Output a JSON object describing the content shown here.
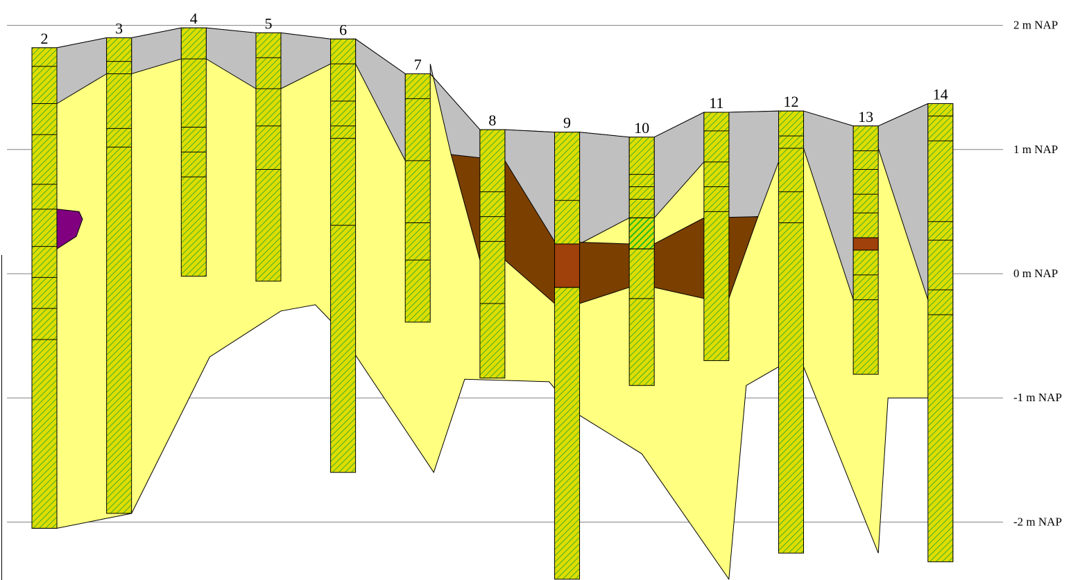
{
  "unit": "m NAP",
  "levels": [
    {
      "value": 2,
      "label": "2  m NAP"
    },
    {
      "value": 1,
      "label": "1  m NAP"
    },
    {
      "value": 0,
      "label": "0  m NAP"
    },
    {
      "value": -1,
      "label": "-1  m NAP"
    },
    {
      "value": -2,
      "label": "-2  m NAP"
    }
  ],
  "colors": {
    "sand": "#FFFF80",
    "fill": "#C0C0C0",
    "peat": "#7B3F00",
    "peat_bore": "#A0400A",
    "clay": "#800080",
    "column": "#DDDD00",
    "hatch": "#33AA33",
    "line": "#000000",
    "grid": "#808080"
  },
  "borings": [
    {
      "label": "2",
      "top": 1.82,
      "bottom": -2.05,
      "boundaries": [
        1.67,
        1.37,
        1.12,
        0.72,
        0.52,
        0.22,
        -0.03,
        -0.28,
        -0.53
      ]
    },
    {
      "label": "3",
      "top": 1.9,
      "bottom": -1.93,
      "boundaries": [
        1.71,
        1.61,
        1.17,
        1.02
      ]
    },
    {
      "label": "4",
      "top": 1.98,
      "bottom": -0.02,
      "boundaries": [
        1.73,
        1.18,
        0.98,
        0.78
      ]
    },
    {
      "label": "5",
      "top": 1.94,
      "bottom": -0.06,
      "boundaries": [
        1.74,
        1.49,
        1.19,
        0.84
      ]
    },
    {
      "label": "6",
      "top": 1.89,
      "bottom": -1.6,
      "boundaries": [
        1.69,
        1.39,
        1.19,
        1.09,
        0.39
      ]
    },
    {
      "label": "7",
      "top": 1.61,
      "bottom": -0.39,
      "boundaries": [
        1.41,
        0.91,
        0.41,
        0.11
      ]
    },
    {
      "label": "8",
      "top": 1.16,
      "bottom": -0.84,
      "boundaries": [
        0.66,
        0.46,
        0.26,
        -0.24
      ]
    },
    {
      "label": "9",
      "top": 1.14,
      "bottom": -2.46,
      "boundaries": [
        0.59,
        0.24,
        -0.11
      ],
      "peat_from": 0.24,
      "peat_to": -0.11
    },
    {
      "label": "10",
      "top": 1.1,
      "bottom": -0.9,
      "boundaries": [
        0.8,
        0.7,
        0.6,
        0.45,
        0.2,
        -0.2
      ],
      "green_from": 0.45,
      "green_to": 0.2
    },
    {
      "label": "11",
      "top": 1.3,
      "bottom": -0.7,
      "boundaries": [
        1.15,
        0.9,
        0.7,
        0.5
      ]
    },
    {
      "label": "12",
      "top": 1.31,
      "bottom": -2.25,
      "boundaries": [
        1.11,
        1.01,
        0.66,
        0.41
      ]
    },
    {
      "label": "13",
      "top": 1.19,
      "bottom": -0.81,
      "boundaries": [
        0.99,
        0.84,
        0.64,
        0.49,
        0.29,
        0.19,
        -0.01,
        -0.21
      ],
      "peat_from": 0.29,
      "peat_to": 0.19
    },
    {
      "label": "14",
      "top": 1.37,
      "bottom": -2.32,
      "boundaries": [
        1.27,
        1.07,
        0.42,
        0.27,
        -0.13,
        -0.33
      ]
    }
  ],
  "layers": {
    "fill_bottom": [
      1.37,
      1.61,
      1.73,
      1.49,
      1.69,
      0.91,
      0.26,
      0.24,
      0.45,
      0.9,
      1.01,
      -0.21,
      -0.13
    ],
    "sand_base": [
      -2.05,
      -1.93,
      -0.67,
      -0.3,
      -0.25,
      -0.43,
      -1.6,
      -0.85,
      -0.87,
      -1.12,
      -1.45,
      -2.46,
      -0.9,
      -0.75,
      -0.75,
      -2.25,
      -1.0,
      -1.0,
      -2.32
    ],
    "peat_top": [
      0.96,
      0.91,
      0.26,
      0.24,
      0.45,
      0.46
    ],
    "peat_bottom": [
      -0.2,
      -0.24,
      -0.11,
      -0.2,
      0.46
    ]
  }
}
